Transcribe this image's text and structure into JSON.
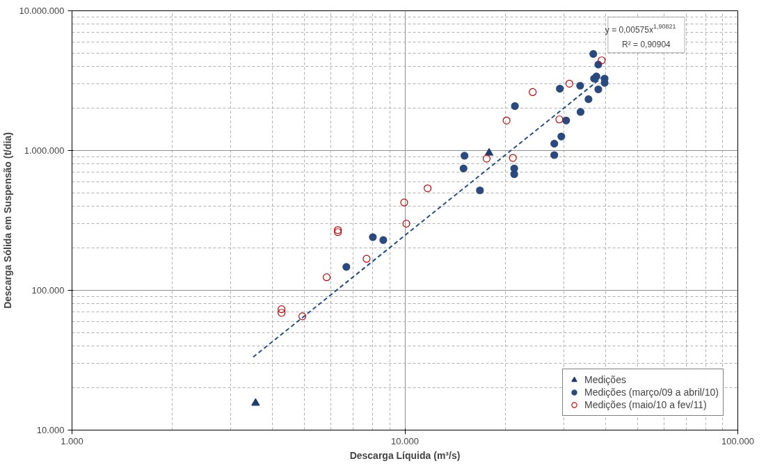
{
  "chart_data": {
    "type": "scatter",
    "xlabel": "Descarga Líquida (m³/s)",
    "ylabel": "Descarga Sólida em Suspensão (t/dia)",
    "log": "xy",
    "grid": true,
    "legend": "bottom right",
    "xlim": [
      1000,
      100000
    ],
    "ylim": [
      10000,
      10000000
    ],
    "xticks": [
      {
        "value": 1000,
        "label": "1.000"
      },
      {
        "value": 10000,
        "label": "10.000"
      },
      {
        "value": 100000,
        "label": "100.000"
      }
    ],
    "yticks": [
      {
        "value": 10000,
        "label": "10.000"
      },
      {
        "value": 100000,
        "label": "100.000"
      },
      {
        "value": 1000000,
        "label": "1.000.000"
      },
      {
        "value": 10000000,
        "label": "10.000.000"
      }
    ],
    "annotations": [
      "y = 0,00575x$^{1,90821}$",
      "R² = 0,90904"
    ],
    "series": [
      {
        "name": "Medições",
        "color": "#1f3d6e",
        "marker": "triangle",
        "x": [
          3560,
          17900
        ],
        "values": [
          15600,
          962000
        ]
      },
      {
        "name": "Medições (março/09 a abril/10)",
        "color": "#2a4a7f",
        "marker": "circle",
        "x": [
          15100,
          15000,
          16800,
          21300,
          21300,
          21400,
          8010,
          8610,
          6670,
          28100,
          28100,
          29500,
          29200,
          30500,
          33600,
          33700,
          35600,
          36800,
          37000,
          37600,
          38100,
          38100,
          39800,
          39800
        ],
        "values": [
          918000,
          744000,
          519000,
          744000,
          678000,
          2080000,
          240000,
          229000,
          147000,
          928000,
          1120000,
          1260000,
          2770000,
          1640000,
          2910000,
          1890000,
          2330000,
          4910000,
          3270000,
          3390000,
          4120000,
          2740000,
          3270000,
          3050000
        ]
      },
      {
        "name": "Medições (maio/10 a fev/11)",
        "color": "#cc0000",
        "marker": "circle",
        "x": [
          4260,
          4260,
          4920,
          5820,
          6290,
          6290,
          7670,
          9950,
          10100,
          11700,
          17600,
          20200,
          21100,
          24200,
          29100,
          31200,
          39000
        ],
        "values": [
          73300,
          69100,
          65200,
          124000,
          270000,
          261000,
          168000,
          425000,
          300000,
          537000,
          875000,
          1640000,
          886000,
          2620000,
          1670000,
          3010000,
          4420000
        ]
      },
      {
        "type": "line",
        "color": "#1f4e8c",
        "line_style": "dashed",
        "marker": "none",
        "x": [
          3500,
          10000,
          20000,
          39000
        ],
        "values": [
          33300,
          247000,
          927000,
          3320000
        ]
      }
    ]
  }
}
